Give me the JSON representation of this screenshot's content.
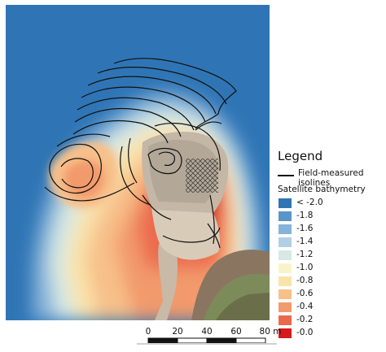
{
  "legend": {
    "title": "Legend",
    "line_label": "Field-measured isolines",
    "subtitle": "Satellite bathymetry",
    "items": [
      {
        "label": "< -2.0",
        "color": "#2f75b5"
      },
      {
        "label": "-1.8",
        "color": "#5b95c8"
      },
      {
        "label": "-1.6",
        "color": "#86b3d9"
      },
      {
        "label": "-1.4",
        "color": "#b1d0e5"
      },
      {
        "label": "-1.2",
        "color": "#d6e9e4"
      },
      {
        "label": "-1.0",
        "color": "#f7f5c8"
      },
      {
        "label": "-0.8",
        "color": "#fae3aa"
      },
      {
        "label": "-0.6",
        "color": "#f7c08a"
      },
      {
        "label": "-0.4",
        "color": "#f29a6c"
      },
      {
        "label": "-0.2",
        "color": "#eb6a4d"
      },
      {
        "label": "-0.0",
        "color": "#d7191c"
      }
    ]
  },
  "scale_bar": {
    "labels": [
      "0",
      "20",
      "40",
      "60",
      "80 m"
    ]
  },
  "colors": {
    "deep_water": "#2f75b5",
    "shallow": "#d7191c",
    "land": "#8a7560"
  }
}
